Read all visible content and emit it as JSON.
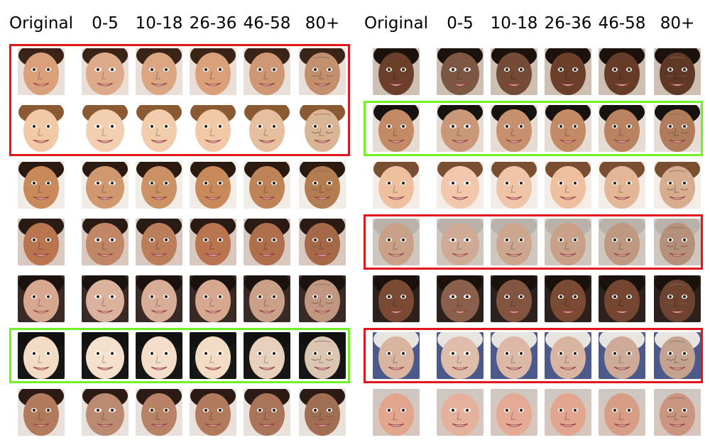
{
  "panels": [
    {
      "headers": [
        "Original",
        "0-5",
        "10-18",
        "26-36",
        "46-58",
        "80+"
      ],
      "rows": [
        {
          "subject": "toddler girl, dark hair, headscarf",
          "skin": "#d9a07a",
          "hair": "#3a2418",
          "bg": "#e9dfd8"
        },
        {
          "subject": "young girl, light brown hair",
          "skin": "#f1c9a6",
          "hair": "#8b5a32",
          "bg": "#ffffff"
        },
        {
          "subject": "boy, short dark hair",
          "skin": "#c88a5a",
          "hair": "#2b1a10",
          "bg": "#f1ece6"
        },
        {
          "subject": "smiling girl, long dark hair",
          "skin": "#b87550",
          "hair": "#2a1a14",
          "bg": "#d8c8c0"
        },
        {
          "subject": "girl with bangs",
          "skin": "#d6a890",
          "hair": "#1b1210",
          "bg": "#3a2a26"
        },
        {
          "subject": "woman, black hair",
          "skin": "#f3dcc6",
          "hair": "#111111",
          "bg": "#161616"
        },
        {
          "subject": "man with goatee",
          "skin": "#b27a5c",
          "hair": "#2b1b14",
          "bg": "#e8e0da"
        }
      ],
      "highlights": [
        {
          "rows": [
            0,
            1
          ],
          "color": "#e0161c"
        },
        {
          "rows": [
            5,
            5
          ],
          "color": "#6cf226"
        }
      ]
    },
    {
      "headers": [
        "Original",
        "0-5",
        "10-18",
        "26-36",
        "46-58",
        "80+"
      ],
      "rows": [
        {
          "subject": "woman, dark skin, big smile",
          "skin": "#6b3f2a",
          "hair": "#1b120d",
          "bg": "#cdbfb2"
        },
        {
          "subject": "man, short black hair",
          "skin": "#c38a66",
          "hair": "#161210",
          "bg": "#e6dcd4"
        },
        {
          "subject": "woman with glasses",
          "skin": "#efc0a0",
          "hair": "#7a4e30",
          "bg": "#f4ece6"
        },
        {
          "subject": "older man with glasses and beard",
          "skin": "#c9a088",
          "hair": "#b8b2aa",
          "bg": "#cfc6bd"
        },
        {
          "subject": "woman, dark skin, open mouth",
          "skin": "#7a4a34",
          "hair": "#1a110c",
          "bg": "#2c211c"
        },
        {
          "subject": "elderly woman",
          "skin": "#d9b4a0",
          "hair": "#e8e4e0",
          "bg": "#4b5a8a"
        },
        {
          "subject": "older woman, grey hair",
          "skin": "#e2a58e",
          "hair": "#cfc8c2",
          "bg": "#d6c6be"
        }
      ],
      "highlights": [
        {
          "rows": [
            1,
            1
          ],
          "color": "#6cf226"
        },
        {
          "rows": [
            3,
            3
          ],
          "color": "#e0161c"
        },
        {
          "rows": [
            5,
            5
          ],
          "color": "#e0161c"
        }
      ]
    }
  ]
}
